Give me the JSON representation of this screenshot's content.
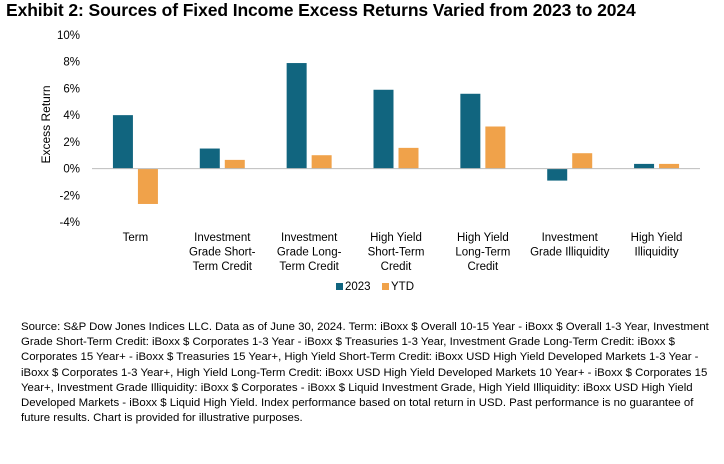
{
  "exhibit_title": "Exhibit 2: Sources of Fixed Income Excess Returns Varied from 2023 to 2024",
  "source_note": "Source: S&P Dow Jones Indices LLC. Data as of June 30, 2024. Term: iBoxx $ Overall 10-15 Year - iBoxx $ Overall 1-3 Year, Investment Grade Short-Term Credit: iBoxx $ Corporates 1-3 Year - iBoxx $ Treasuries 1-3 Year, Investment Grade Long-Term Credit: iBoxx $ Corporates 15 Year+ - iBoxx $ Treasuries 15 Year+, High Yield Short-Term Credit: iBoxx USD High Yield Developed Markets 1-3 Year - iBoxx $ Corporates 1-3 Year+, High Yield Long-Term Credit: iBoxx USD High Yield Developed Markets 10 Year+ - iBoxx $ Corporates 15 Year+, Investment Grade Illiquidity: iBoxx $ Corporates - iBoxx $ Liquid Investment Grade, High Yield Illiquidity: iBoxx USD High Yield Developed Markets - iBoxx $ Liquid High Yield. Index performance based on total return in USD. Past performance is no guarantee of future results. Chart is provided for illustrative purposes.",
  "chart_data": {
    "type": "bar",
    "ylabel": "Excess Return",
    "ylim": [
      -4,
      10
    ],
    "yticks": [
      -4,
      -2,
      0,
      2,
      4,
      6,
      8,
      10
    ],
    "ytick_labels": [
      "-4%",
      "-2%",
      "0%",
      "2%",
      "4%",
      "6%",
      "8%",
      "10%"
    ],
    "categories": [
      [
        "Term"
      ],
      [
        "Investment",
        "Grade Short-",
        "Term Credit"
      ],
      [
        "Investment",
        "Grade Long-",
        "Term Credit"
      ],
      [
        "High Yield",
        "Short-Term",
        "Credit"
      ],
      [
        "High Yield",
        "Long-Term",
        "Credit"
      ],
      [
        "Investment",
        "Grade Illiquidity"
      ],
      [
        "High Yield",
        "Illiquidity"
      ]
    ],
    "series": [
      {
        "name": "2023",
        "color": "#11657f",
        "values": [
          4.0,
          1.5,
          7.9,
          5.9,
          5.6,
          -0.9,
          0.35
        ]
      },
      {
        "name": "YTD",
        "color": "#f0a24a",
        "values": [
          -2.65,
          0.65,
          1.0,
          1.55,
          3.15,
          1.15,
          0.35
        ]
      }
    ],
    "legend_position": "bottom",
    "grid": false
  }
}
